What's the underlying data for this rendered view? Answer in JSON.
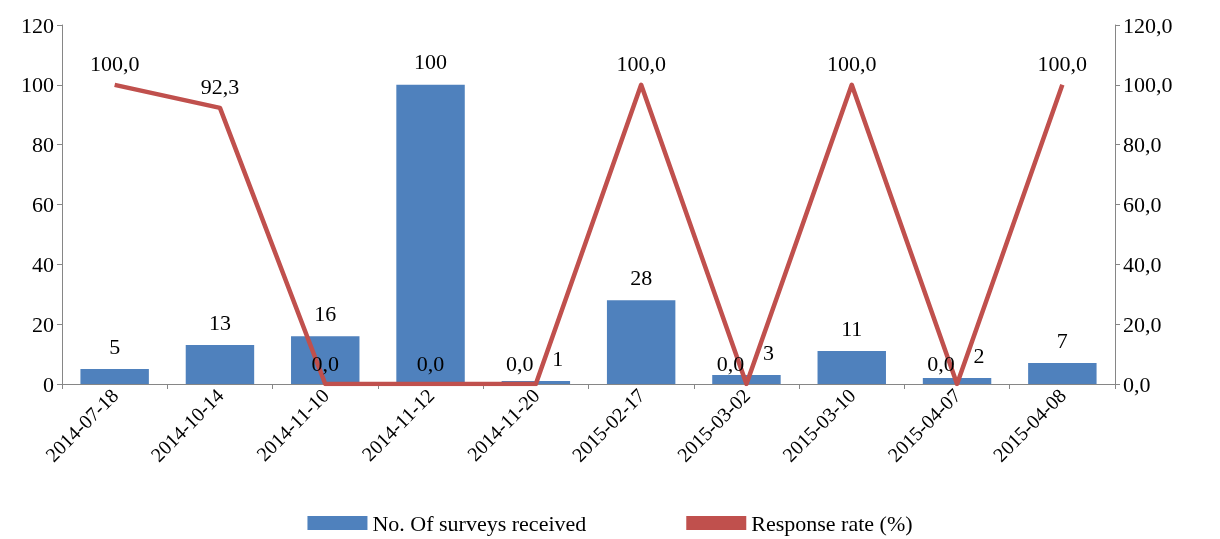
{
  "chart_data": {
    "type": "bar",
    "categories": [
      "2014-07-18",
      "2014-10-14",
      "2014-11-10",
      "2014-11-12",
      "2014-11-20",
      "2015-02-17",
      "2015-03-02",
      "2015-03-10",
      "2015-04-07",
      "2015-04-08"
    ],
    "series": [
      {
        "name": "No. Of surveys received",
        "color": "#4f81bd",
        "values": [
          5,
          13,
          16,
          100,
          1,
          28,
          3,
          11,
          2,
          7
        ],
        "value_labels": [
          "5",
          "13",
          "16",
          "100",
          "1",
          "28",
          "3",
          "11",
          "2",
          "7"
        ]
      },
      {
        "name": "Response rate (%)",
        "type": "line",
        "axis": "y2",
        "color": "#c0504d",
        "marker": "none",
        "values": [
          100.0,
          92.3,
          0.0,
          0.0,
          0.0,
          100.0,
          0.0,
          100.0,
          0.0,
          100.0
        ],
        "value_labels": [
          "100,0",
          "92,3",
          "0,0",
          "0,0",
          "0,0",
          "100,0",
          "0,0",
          "100,0",
          "0,0",
          "100,0"
        ]
      }
    ],
    "ylim": [
      0,
      120
    ],
    "yticks": [
      0,
      20,
      40,
      60,
      80,
      100,
      120
    ],
    "y2lim": [
      0,
      120
    ],
    "y2ticks": [
      {
        "value": 0,
        "label": "0,0"
      },
      {
        "value": 20,
        "label": "20,0"
      },
      {
        "value": 40,
        "label": "40,0"
      },
      {
        "value": 60,
        "label": "60,0"
      },
      {
        "value": 80,
        "label": "80,0"
      },
      {
        "value": 100,
        "label": "100,0"
      },
      {
        "value": 120,
        "label": "120,0"
      }
    ],
    "grid": false,
    "legend": "bottom"
  }
}
